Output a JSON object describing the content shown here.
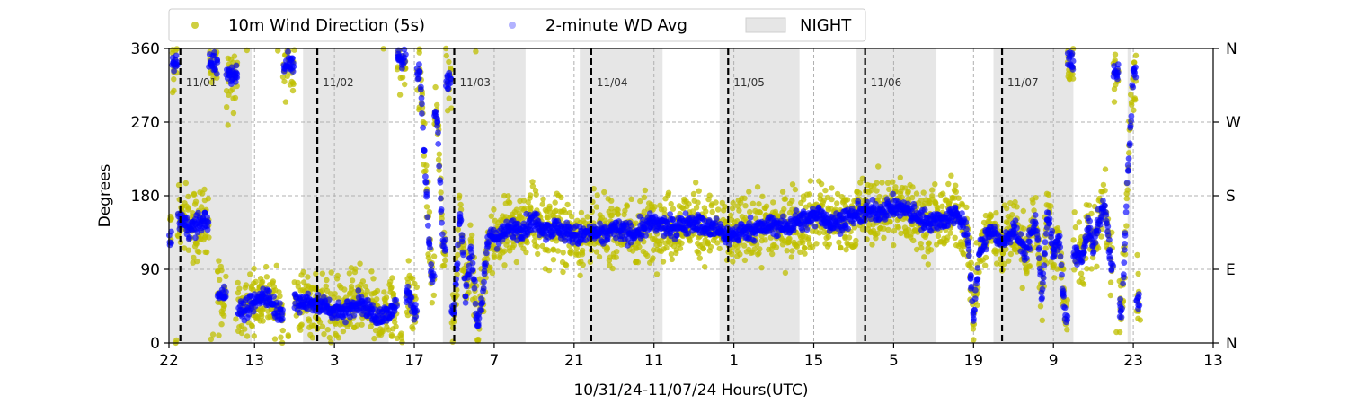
{
  "chart_data": {
    "type": "scatter",
    "title": "",
    "xlabel": "10/31/24-11/07/24  Hours(UTC)",
    "ylabel": "Degrees",
    "x_hours_range": [
      0,
      183
    ],
    "ylim": [
      0,
      360
    ],
    "x_ticks": [
      {
        "h": 0,
        "label": "22"
      },
      {
        "h": 15,
        "label": "13"
      },
      {
        "h": 29,
        "label": "3"
      },
      {
        "h": 43,
        "label": "17"
      },
      {
        "h": 57,
        "label": "7"
      },
      {
        "h": 71,
        "label": "21"
      },
      {
        "h": 85,
        "label": "11"
      },
      {
        "h": 99,
        "label": "1"
      },
      {
        "h": 113,
        "label": "15"
      },
      {
        "h": 127,
        "label": "5"
      },
      {
        "h": 141,
        "label": "19"
      },
      {
        "h": 155,
        "label": "9"
      },
      {
        "h": 169,
        "label": "23"
      },
      {
        "h": 183,
        "label": "13"
      }
    ],
    "y_ticks_left": [
      "0",
      "90",
      "180",
      "270",
      "360"
    ],
    "y_ticks_right": [
      "N",
      "E",
      "S",
      "W",
      "N"
    ],
    "grid": true,
    "legend": {
      "placement": "top-center",
      "entries": [
        {
          "label": "10m Wind Direction (5s)",
          "color": "#bfbf00",
          "marker": "dot"
        },
        {
          "label": "2-minute WD Avg",
          "color": "#0000ff",
          "marker": "dot-faint"
        },
        {
          "label": "NIGHT",
          "color": "#e6e6e6",
          "marker": "patch"
        }
      ]
    },
    "night_periods_hours": [
      [
        0,
        14.5
      ],
      [
        23.5,
        38.5
      ],
      [
        48,
        62.5
      ],
      [
        72,
        86.5
      ],
      [
        96.5,
        110.5
      ],
      [
        120.5,
        134.5
      ],
      [
        144.5,
        158.5
      ],
      [
        168,
        168.5
      ]
    ],
    "day_markers": [
      {
        "h": 2,
        "label": "11/01"
      },
      {
        "h": 26,
        "label": "11/02"
      },
      {
        "h": 50,
        "label": "11/03"
      },
      {
        "h": 74,
        "label": "11/04"
      },
      {
        "h": 98,
        "label": "11/05"
      },
      {
        "h": 122,
        "label": "11/06"
      },
      {
        "h": 146,
        "label": "11/07"
      }
    ],
    "series": [
      {
        "name": "10m Wind Direction (5s)",
        "color": "#bfbf00",
        "spread_degrees": 40,
        "trend": [
          [
            0,
            130
          ],
          [
            1,
            340
          ],
          [
            2,
            150
          ],
          [
            4,
            140
          ],
          [
            6,
            150
          ],
          [
            8,
            340
          ],
          [
            9,
            60
          ],
          [
            11,
            330
          ],
          [
            13,
            40
          ],
          [
            15,
            50
          ],
          [
            17,
            60
          ],
          [
            19,
            40
          ],
          [
            21,
            340
          ],
          [
            23,
            50
          ],
          [
            25,
            50
          ],
          [
            27,
            45
          ],
          [
            29,
            40
          ],
          [
            31,
            40
          ],
          [
            33,
            50
          ],
          [
            35,
            40
          ],
          [
            37,
            30
          ],
          [
            39,
            40
          ],
          [
            41,
            350
          ],
          [
            42,
            60
          ],
          [
            43,
            40
          ],
          [
            44,
            330
          ],
          [
            45,
            200
          ],
          [
            46,
            80
          ],
          [
            47,
            280
          ],
          [
            48,
            120
          ],
          [
            49,
            320
          ],
          [
            50,
            40
          ],
          [
            51,
            160
          ],
          [
            52,
            60
          ],
          [
            53,
            120
          ],
          [
            54,
            20
          ],
          [
            55,
            60
          ],
          [
            56,
            130
          ],
          [
            58,
            130
          ],
          [
            60,
            140
          ],
          [
            62,
            140
          ],
          [
            64,
            150
          ],
          [
            66,
            140
          ],
          [
            68,
            140
          ],
          [
            70,
            135
          ],
          [
            72,
            130
          ],
          [
            74,
            135
          ],
          [
            76,
            130
          ],
          [
            78,
            140
          ],
          [
            80,
            135
          ],
          [
            82,
            135
          ],
          [
            84,
            145
          ],
          [
            86,
            145
          ],
          [
            88,
            140
          ],
          [
            90,
            145
          ],
          [
            92,
            150
          ],
          [
            94,
            140
          ],
          [
            96,
            140
          ],
          [
            98,
            130
          ],
          [
            100,
            135
          ],
          [
            102,
            140
          ],
          [
            104,
            140
          ],
          [
            106,
            145
          ],
          [
            108,
            140
          ],
          [
            110,
            150
          ],
          [
            112,
            150
          ],
          [
            114,
            160
          ],
          [
            116,
            145
          ],
          [
            118,
            150
          ],
          [
            120,
            155
          ],
          [
            122,
            160
          ],
          [
            124,
            160
          ],
          [
            126,
            165
          ],
          [
            128,
            165
          ],
          [
            130,
            160
          ],
          [
            132,
            150
          ],
          [
            134,
            150
          ],
          [
            136,
            150
          ],
          [
            138,
            160
          ],
          [
            140,
            130
          ],
          [
            141,
            30
          ],
          [
            142,
            110
          ],
          [
            144,
            140
          ],
          [
            146,
            120
          ],
          [
            148,
            140
          ],
          [
            150,
            110
          ],
          [
            152,
            150
          ],
          [
            153,
            60
          ],
          [
            154,
            160
          ],
          [
            155,
            110
          ],
          [
            156,
            130
          ],
          [
            157,
            30
          ],
          [
            158,
            345
          ],
          [
            159,
            110
          ],
          [
            160,
            100
          ],
          [
            161,
            140
          ],
          [
            162,
            120
          ],
          [
            163,
            150
          ],
          [
            164,
            170
          ],
          [
            165,
            100
          ],
          [
            166,
            330
          ],
          [
            167,
            40
          ],
          [
            168,
            200
          ],
          [
            169,
            330
          ],
          [
            170,
            50
          ]
        ]
      },
      {
        "name": "2-minute WD Avg",
        "color": "#0000ff",
        "spread_degrees": 12,
        "trend": [
          [
            0,
            130
          ],
          [
            1,
            340
          ],
          [
            2,
            150
          ],
          [
            4,
            140
          ],
          [
            6,
            150
          ],
          [
            8,
            340
          ],
          [
            9,
            60
          ],
          [
            11,
            330
          ],
          [
            13,
            40
          ],
          [
            15,
            50
          ],
          [
            17,
            60
          ],
          [
            19,
            40
          ],
          [
            21,
            340
          ],
          [
            23,
            50
          ],
          [
            25,
            50
          ],
          [
            27,
            45
          ],
          [
            29,
            40
          ],
          [
            31,
            40
          ],
          [
            33,
            50
          ],
          [
            35,
            40
          ],
          [
            37,
            30
          ],
          [
            39,
            40
          ],
          [
            41,
            350
          ],
          [
            42,
            60
          ],
          [
            43,
            40
          ],
          [
            44,
            330
          ],
          [
            45,
            200
          ],
          [
            46,
            80
          ],
          [
            47,
            280
          ],
          [
            48,
            120
          ],
          [
            49,
            320
          ],
          [
            50,
            40
          ],
          [
            51,
            160
          ],
          [
            52,
            60
          ],
          [
            53,
            120
          ],
          [
            54,
            20
          ],
          [
            55,
            60
          ],
          [
            56,
            130
          ],
          [
            58,
            130
          ],
          [
            60,
            140
          ],
          [
            62,
            140
          ],
          [
            64,
            150
          ],
          [
            66,
            140
          ],
          [
            68,
            140
          ],
          [
            70,
            135
          ],
          [
            72,
            130
          ],
          [
            74,
            135
          ],
          [
            76,
            130
          ],
          [
            78,
            140
          ],
          [
            80,
            135
          ],
          [
            82,
            135
          ],
          [
            84,
            145
          ],
          [
            86,
            145
          ],
          [
            88,
            140
          ],
          [
            90,
            145
          ],
          [
            92,
            150
          ],
          [
            94,
            140
          ],
          [
            96,
            140
          ],
          [
            98,
            130
          ],
          [
            100,
            135
          ],
          [
            102,
            140
          ],
          [
            104,
            140
          ],
          [
            106,
            145
          ],
          [
            108,
            140
          ],
          [
            110,
            150
          ],
          [
            112,
            150
          ],
          [
            114,
            160
          ],
          [
            116,
            145
          ],
          [
            118,
            150
          ],
          [
            120,
            155
          ],
          [
            122,
            160
          ],
          [
            124,
            160
          ],
          [
            126,
            165
          ],
          [
            128,
            165
          ],
          [
            130,
            160
          ],
          [
            132,
            150
          ],
          [
            134,
            150
          ],
          [
            136,
            150
          ],
          [
            138,
            160
          ],
          [
            140,
            130
          ],
          [
            141,
            30
          ],
          [
            142,
            110
          ],
          [
            144,
            140
          ],
          [
            146,
            120
          ],
          [
            148,
            140
          ],
          [
            150,
            110
          ],
          [
            152,
            150
          ],
          [
            153,
            60
          ],
          [
            154,
            160
          ],
          [
            155,
            110
          ],
          [
            156,
            130
          ],
          [
            157,
            30
          ],
          [
            158,
            345
          ],
          [
            159,
            110
          ],
          [
            160,
            100
          ],
          [
            161,
            140
          ],
          [
            162,
            120
          ],
          [
            163,
            150
          ],
          [
            164,
            170
          ],
          [
            165,
            100
          ],
          [
            166,
            330
          ],
          [
            167,
            40
          ],
          [
            168,
            200
          ],
          [
            169,
            330
          ],
          [
            170,
            50
          ]
        ]
      }
    ]
  }
}
